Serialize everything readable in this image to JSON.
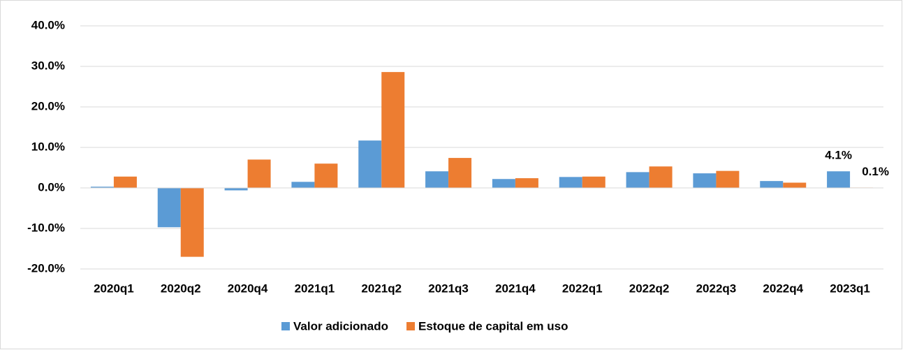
{
  "chart_data": {
    "type": "bar",
    "categories": [
      "2020q1",
      "2020q2",
      "2020q4",
      "2021q1",
      "2021q2",
      "2021q3",
      "2021q4",
      "2022q1",
      "2022q2",
      "2022q3",
      "2022q4",
      "2023q1"
    ],
    "series": [
      {
        "name": "Valor adicionado",
        "color": "#5b9bd5",
        "values": [
          0.3,
          -9.7,
          -0.6,
          1.5,
          11.7,
          4.1,
          2.2,
          2.7,
          3.9,
          3.6,
          1.7,
          4.1
        ],
        "value_labels": [
          null,
          null,
          null,
          null,
          null,
          null,
          null,
          null,
          null,
          null,
          null,
          "4.1%"
        ]
      },
      {
        "name": "Estoque de capital em uso",
        "color": "#ed7d31",
        "values": [
          2.8,
          -17.0,
          7.0,
          6.0,
          28.6,
          7.4,
          2.4,
          2.8,
          5.3,
          4.2,
          1.3,
          0.1
        ],
        "value_labels": [
          null,
          null,
          null,
          null,
          null,
          null,
          null,
          null,
          null,
          null,
          null,
          "0.1%"
        ]
      }
    ],
    "ylim": [
      -20,
      40
    ],
    "yticks": [
      {
        "value": -20,
        "label": "-20.0%"
      },
      {
        "value": -10,
        "label": "-10.0%"
      },
      {
        "value": 0,
        "label": "0.0%"
      },
      {
        "value": 10,
        "label": "10.0%"
      },
      {
        "value": 20,
        "label": "20.0%"
      },
      {
        "value": 30,
        "label": "30.0%"
      },
      {
        "value": 40,
        "label": "40.0%"
      }
    ],
    "grid": true,
    "legend": "bottom"
  }
}
